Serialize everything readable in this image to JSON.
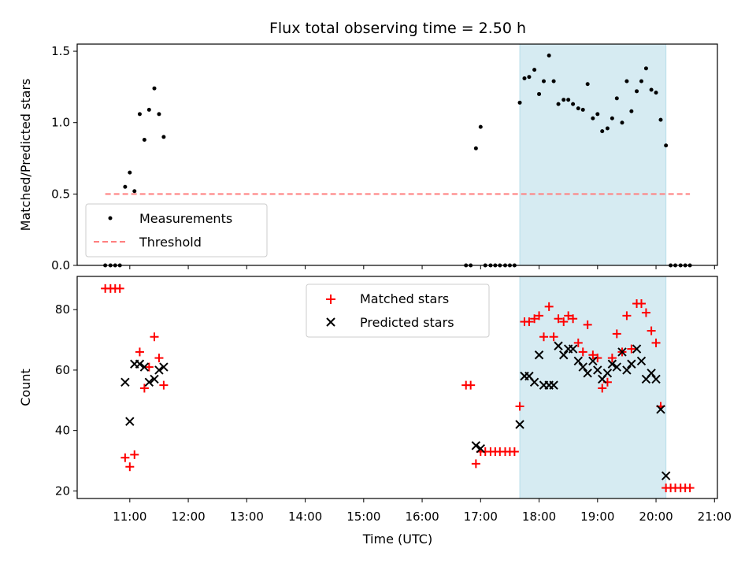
{
  "chart_data": {
    "type": "scatter",
    "title": "Flux total observing time = 2.50 h",
    "xlabel": "Time (UTC)",
    "x_unit": "hours UTC",
    "x_ticks": [
      {
        "value": 11,
        "label": "11:00"
      },
      {
        "value": 12,
        "label": "12:00"
      },
      {
        "value": 13,
        "label": "13:00"
      },
      {
        "value": 14,
        "label": "14:00"
      },
      {
        "value": 15,
        "label": "15:00"
      },
      {
        "value": 16,
        "label": "16:00"
      },
      {
        "value": 17,
        "label": "17:00"
      },
      {
        "value": 18,
        "label": "18:00"
      },
      {
        "value": 19,
        "label": "19:00"
      },
      {
        "value": 20,
        "label": "20:00"
      },
      {
        "value": 21,
        "label": "21:00"
      }
    ],
    "xlim": [
      10.1,
      21.05
    ],
    "colors": {
      "measurements": "#000000",
      "threshold": "#ff7f7f",
      "matched": "#ff0000",
      "predicted": "#000000",
      "highlight": "#add8e6"
    },
    "panels": [
      {
        "ylabel": "Matched/Predicted stars",
        "ylim": [
          0,
          1.55
        ],
        "y_ticks": [
          {
            "value": 0.0,
            "label": "0.0"
          },
          {
            "value": 0.5,
            "label": "0.5"
          },
          {
            "value": 1.0,
            "label": "1.0"
          },
          {
            "value": 1.5,
            "label": "1.5"
          }
        ],
        "highlight_span": [
          17.67,
          20.17
        ],
        "legend": {
          "position": "lower-left",
          "entries": [
            "Measurements",
            "Threshold"
          ]
        },
        "series": [
          {
            "name": "Measurements",
            "marker": "dot",
            "points": [
              [
                10.58,
                0
              ],
              [
                10.67,
                0
              ],
              [
                10.75,
                0
              ],
              [
                10.83,
                0
              ],
              [
                10.92,
                0.55
              ],
              [
                11.0,
                0.65
              ],
              [
                11.08,
                0.52
              ],
              [
                11.17,
                1.06
              ],
              [
                11.25,
                0.88
              ],
              [
                11.33,
                1.09
              ],
              [
                11.42,
                1.24
              ],
              [
                11.5,
                1.06
              ],
              [
                11.58,
                0.9
              ],
              [
                16.75,
                0
              ],
              [
                16.83,
                0
              ],
              [
                16.92,
                0.82
              ],
              [
                17.0,
                0.97
              ],
              [
                17.08,
                0
              ],
              [
                17.17,
                0
              ],
              [
                17.25,
                0
              ],
              [
                17.33,
                0
              ],
              [
                17.42,
                0
              ],
              [
                17.5,
                0
              ],
              [
                17.58,
                0
              ],
              [
                17.67,
                1.14
              ],
              [
                17.75,
                1.31
              ],
              [
                17.83,
                1.32
              ],
              [
                17.92,
                1.37
              ],
              [
                18.0,
                1.2
              ],
              [
                18.08,
                1.29
              ],
              [
                18.17,
                1.47
              ],
              [
                18.25,
                1.29
              ],
              [
                18.33,
                1.13
              ],
              [
                18.42,
                1.16
              ],
              [
                18.5,
                1.16
              ],
              [
                18.58,
                1.13
              ],
              [
                18.67,
                1.1
              ],
              [
                18.75,
                1.09
              ],
              [
                18.83,
                1.27
              ],
              [
                18.92,
                1.03
              ],
              [
                19.0,
                1.06
              ],
              [
                19.08,
                0.94
              ],
              [
                19.17,
                0.96
              ],
              [
                19.25,
                1.03
              ],
              [
                19.33,
                1.17
              ],
              [
                19.42,
                1.0
              ],
              [
                19.5,
                1.29
              ],
              [
                19.58,
                1.08
              ],
              [
                19.67,
                1.22
              ],
              [
                19.75,
                1.29
              ],
              [
                19.83,
                1.38
              ],
              [
                19.92,
                1.23
              ],
              [
                20.0,
                1.21
              ],
              [
                20.08,
                1.02
              ],
              [
                20.17,
                0.84
              ],
              [
                20.25,
                0
              ],
              [
                20.33,
                0
              ],
              [
                20.42,
                0
              ],
              [
                20.5,
                0
              ],
              [
                20.58,
                0
              ]
            ]
          },
          {
            "name": "Threshold",
            "style": "dashed",
            "value": 0.5,
            "x_range": [
              10.58,
              20.58
            ]
          }
        ]
      },
      {
        "ylabel": "Count",
        "ylim": [
          17.5,
          91
        ],
        "y_ticks": [
          {
            "value": 20,
            "label": "20"
          },
          {
            "value": 40,
            "label": "40"
          },
          {
            "value": 60,
            "label": "60"
          },
          {
            "value": 80,
            "label": "80"
          }
        ],
        "highlight_span": [
          17.67,
          20.17
        ],
        "legend": {
          "position": "upper-center",
          "entries": [
            "Matched stars",
            "Predicted stars"
          ]
        },
        "series": [
          {
            "name": "Matched stars",
            "marker": "plus",
            "points": [
              [
                10.58,
                87
              ],
              [
                10.67,
                87
              ],
              [
                10.75,
                87
              ],
              [
                10.83,
                87
              ],
              [
                10.92,
                31
              ],
              [
                11.0,
                28
              ],
              [
                11.08,
                32
              ],
              [
                11.17,
                66
              ],
              [
                11.25,
                54
              ],
              [
                11.33,
                61
              ],
              [
                11.42,
                71
              ],
              [
                11.5,
                64
              ],
              [
                11.58,
                55
              ],
              [
                16.75,
                55
              ],
              [
                16.83,
                55
              ],
              [
                16.92,
                29
              ],
              [
                17.0,
                33
              ],
              [
                17.08,
                33
              ],
              [
                17.17,
                33
              ],
              [
                17.25,
                33
              ],
              [
                17.33,
                33
              ],
              [
                17.42,
                33
              ],
              [
                17.5,
                33
              ],
              [
                17.58,
                33
              ],
              [
                17.67,
                48
              ],
              [
                17.75,
                76
              ],
              [
                17.83,
                76
              ],
              [
                17.92,
                77
              ],
              [
                18.0,
                78
              ],
              [
                18.08,
                71
              ],
              [
                18.17,
                81
              ],
              [
                18.25,
                71
              ],
              [
                18.33,
                77
              ],
              [
                18.42,
                76
              ],
              [
                18.5,
                78
              ],
              [
                18.58,
                77
              ],
              [
                18.67,
                69
              ],
              [
                18.75,
                66
              ],
              [
                18.83,
                75
              ],
              [
                18.92,
                65
              ],
              [
                19.0,
                64
              ],
              [
                19.08,
                54
              ],
              [
                19.17,
                56
              ],
              [
                19.25,
                64
              ],
              [
                19.33,
                72
              ],
              [
                19.42,
                66
              ],
              [
                19.5,
                78
              ],
              [
                19.58,
                67
              ],
              [
                19.67,
                82
              ],
              [
                19.75,
                82
              ],
              [
                19.83,
                79
              ],
              [
                19.92,
                73
              ],
              [
                20.0,
                69
              ],
              [
                20.08,
                48
              ],
              [
                20.17,
                21
              ],
              [
                20.25,
                21
              ],
              [
                20.33,
                21
              ],
              [
                20.42,
                21
              ],
              [
                20.5,
                21
              ],
              [
                20.58,
                21
              ]
            ]
          },
          {
            "name": "Predicted stars",
            "marker": "x",
            "points": [
              [
                10.92,
                56
              ],
              [
                11.0,
                43
              ],
              [
                11.08,
                62
              ],
              [
                11.17,
                62
              ],
              [
                11.25,
                61
              ],
              [
                11.33,
                56
              ],
              [
                11.42,
                57
              ],
              [
                11.5,
                60
              ],
              [
                11.58,
                61
              ],
              [
                16.92,
                35
              ],
              [
                17.0,
                34
              ],
              [
                17.67,
                42
              ],
              [
                17.75,
                58
              ],
              [
                17.83,
                58
              ],
              [
                17.92,
                56
              ],
              [
                18.0,
                65
              ],
              [
                18.08,
                55
              ],
              [
                18.17,
                55
              ],
              [
                18.25,
                55
              ],
              [
                18.33,
                68
              ],
              [
                18.42,
                65
              ],
              [
                18.5,
                67
              ],
              [
                18.58,
                67
              ],
              [
                18.67,
                63
              ],
              [
                18.75,
                61
              ],
              [
                18.83,
                59
              ],
              [
                18.92,
                63
              ],
              [
                19.0,
                60
              ],
              [
                19.08,
                57
              ],
              [
                19.17,
                59
              ],
              [
                19.25,
                62
              ],
              [
                19.33,
                61
              ],
              [
                19.42,
                66
              ],
              [
                19.5,
                60
              ],
              [
                19.58,
                62
              ],
              [
                19.67,
                67
              ],
              [
                19.75,
                63
              ],
              [
                19.83,
                57
              ],
              [
                19.92,
                59
              ],
              [
                20.0,
                57
              ],
              [
                20.08,
                47
              ],
              [
                20.17,
                25
              ]
            ]
          }
        ]
      }
    ]
  }
}
